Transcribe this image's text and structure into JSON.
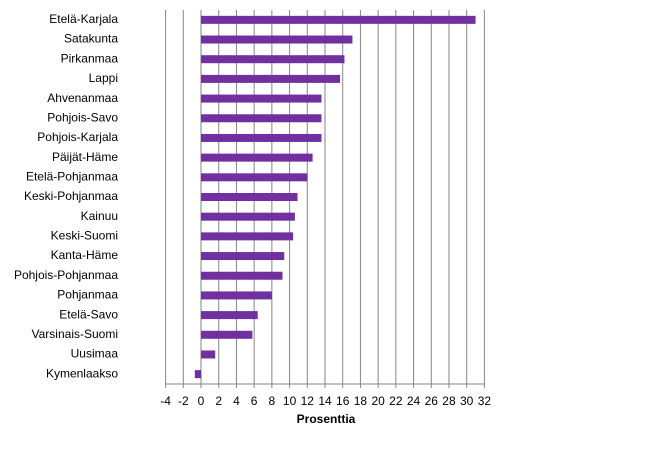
{
  "chart_data": {
    "type": "bar",
    "orientation": "horizontal",
    "categories": [
      "Etelä-Karjala",
      "Satakunta",
      "Pirkanmaa",
      "Lappi",
      "Ahvenanmaa",
      "Pohjois-Savo",
      "Pohjois-Karjala",
      "Päijät-Häme",
      "Etelä-Pohjanmaa",
      "Keski-Pohjanmaa",
      "Kainuu",
      "Keski-Suomi",
      "Kanta-Häme",
      "Pohjois-Pohjanmaa",
      "Pohjanmaa",
      "Etelä-Savo",
      "Varsinais-Suomi",
      "Uusimaa",
      "Kymenlaakso"
    ],
    "values": [
      31.0,
      17.1,
      16.2,
      15.7,
      13.6,
      13.6,
      13.6,
      12.6,
      12.0,
      10.9,
      10.6,
      10.4,
      9.4,
      9.2,
      8.0,
      6.4,
      5.8,
      1.6,
      -0.7
    ],
    "color": "#7030a0",
    "xlabel": "Prosenttia",
    "xlim": [
      -4,
      32
    ],
    "xticks": [
      -4,
      -2,
      0,
      2,
      4,
      6,
      8,
      10,
      12,
      14,
      16,
      18,
      20,
      22,
      24,
      26,
      28,
      30,
      32
    ],
    "grid": true
  }
}
